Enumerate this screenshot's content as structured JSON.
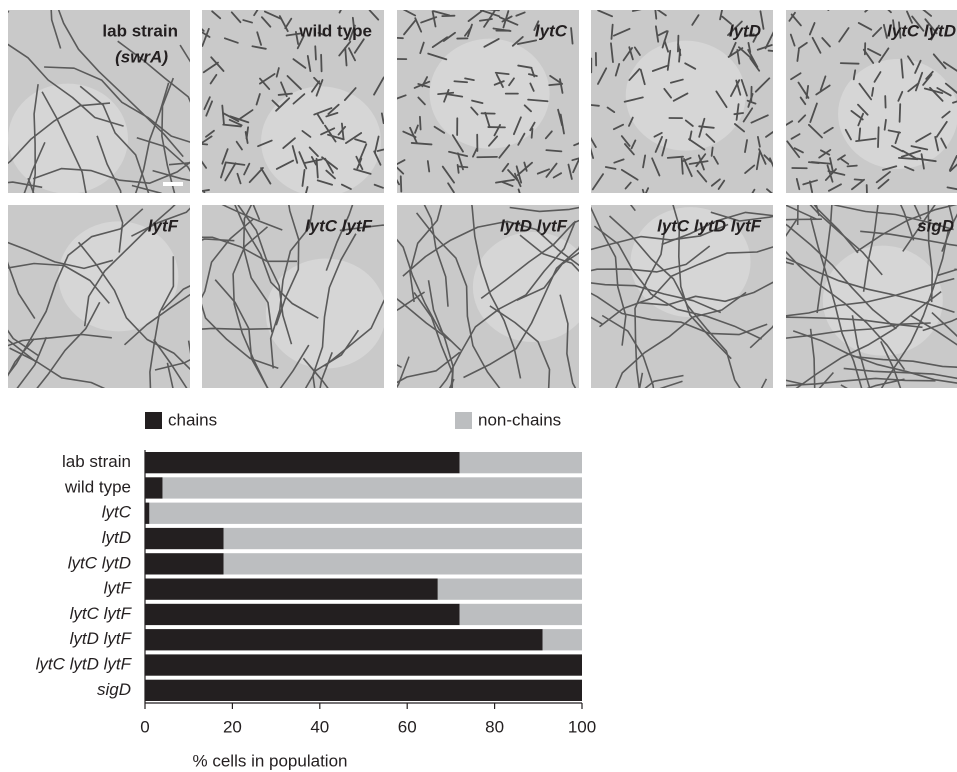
{
  "panels": [
    "lab strain",
    "wild type",
    "lytC",
    "lytD",
    "lytC lytD",
    "lytF",
    "lytC lytF",
    "lytD lytF",
    "lytC lytD lytF",
    "sigD"
  ],
  "panel_sublabel": "(swrA)",
  "chart_data": {
    "type": "stacked-barh",
    "categories": [
      "lab strain",
      "wild type",
      "lytC",
      "lytD",
      "lytC lytD",
      "lytF",
      "lytC lytF",
      "lytD lytF",
      "lytC lytD lytF",
      "sigD"
    ],
    "series": [
      {
        "name": "chains",
        "color": "#231f20",
        "values": [
          72,
          4,
          1,
          18,
          18,
          67,
          72,
          91,
          100,
          100
        ]
      },
      {
        "name": "non-chains",
        "color": "#bcbec0",
        "values": [
          28,
          96,
          99,
          82,
          82,
          33,
          28,
          9,
          0,
          0
        ]
      }
    ],
    "xlabel": "% cells in population",
    "xlim": [
      0,
      100
    ],
    "xticks": [
      0,
      20,
      40,
      60,
      80,
      100
    ]
  }
}
